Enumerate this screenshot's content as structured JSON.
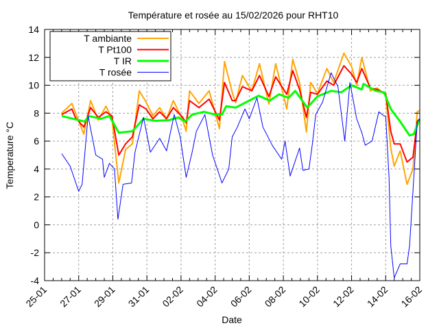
{
  "chart_data": {
    "type": "line",
    "title": "Température et rosée au 15/02/2026 pour RHT10",
    "xlabel": "Date",
    "ylabel": "Temperature °C",
    "x_unit": "days since 25-01 00:00",
    "xlim": [
      0,
      22
    ],
    "ylim": [
      -4,
      14
    ],
    "grid": true,
    "legend_placement": "top-left",
    "x_ticks": [
      {
        "value": 0,
        "label": "25-01"
      },
      {
        "value": 2,
        "label": "27-01"
      },
      {
        "value": 4,
        "label": "29-01"
      },
      {
        "value": 6,
        "label": "31-01"
      },
      {
        "value": 8,
        "label": "02-02"
      },
      {
        "value": 10,
        "label": "04-02"
      },
      {
        "value": 12,
        "label": "06-02"
      },
      {
        "value": 14,
        "label": "08-02"
      },
      {
        "value": 16,
        "label": "10-02"
      },
      {
        "value": 18,
        "label": "12-02"
      },
      {
        "value": 20,
        "label": "14-02"
      },
      {
        "value": 22,
        "label": "16-02"
      }
    ],
    "y_ticks": [
      {
        "value": -4,
        "label": "-4"
      },
      {
        "value": -2,
        "label": "-2"
      },
      {
        "value": 0,
        "label": "0"
      },
      {
        "value": 2,
        "label": "2"
      },
      {
        "value": 4,
        "label": "4"
      },
      {
        "value": 6,
        "label": "6"
      },
      {
        "value": 8,
        "label": "8"
      },
      {
        "value": 10,
        "label": "10"
      },
      {
        "value": 12,
        "label": "12"
      },
      {
        "value": 14,
        "label": "14"
      }
    ],
    "series": [
      {
        "name": "T ambiante",
        "color": "#ffa500",
        "width": 2,
        "x": [
          1,
          1.6,
          2.3,
          2.7,
          3.15,
          3.6,
          3.95,
          4.35,
          4.75,
          5.15,
          5.55,
          5.95,
          6.35,
          6.75,
          7.15,
          7.55,
          8.1,
          8.3,
          8.5,
          9.05,
          9.65,
          10.25,
          10.55,
          11,
          11.2,
          11.6,
          12.15,
          12.6,
          13.15,
          13.55,
          14.2,
          14.55,
          14.95,
          15.35,
          15.6,
          16,
          16.55,
          16.95,
          17.55,
          18,
          18.3,
          18.6,
          19.1,
          19.5,
          20,
          20.3,
          20.5,
          20.85,
          21.25,
          21.6,
          21.85,
          22
        ],
        "y": [
          8.0,
          8.7,
          6.5,
          8.9,
          7.5,
          8.5,
          7.6,
          3.0,
          5.4,
          5.8,
          9.6,
          8.8,
          7.8,
          8.4,
          7.6,
          8.9,
          7.5,
          6.7,
          9.6,
          8.7,
          9.6,
          6.9,
          11.7,
          9.5,
          8.75,
          10.7,
          9.6,
          11.55,
          8.65,
          11.55,
          8.3,
          11.85,
          10.2,
          6.65,
          10.2,
          9.4,
          11.2,
          10.2,
          12.3,
          11.35,
          10.0,
          12.0,
          9.6,
          9.8,
          9.3,
          5.5,
          4.2,
          5.3,
          2.9,
          4.0,
          8.1,
          8.2
        ]
      },
      {
        "name": "T Pt100",
        "color": "#ff0000",
        "width": 2,
        "x": [
          1,
          1.6,
          1.8,
          2.3,
          2.7,
          3.15,
          3.6,
          3.95,
          4.35,
          4.75,
          5.15,
          5.35,
          5.55,
          5.95,
          6.35,
          6.75,
          7.15,
          7.55,
          8.1,
          8.3,
          8.5,
          9.05,
          9.65,
          10.25,
          10.55,
          11,
          11.2,
          11.6,
          12.15,
          12.6,
          13.15,
          13.55,
          14.2,
          14.55,
          14.95,
          15.35,
          15.6,
          16,
          16.55,
          16.95,
          17.55,
          18,
          18.3,
          18.6,
          19.1,
          19.5,
          20,
          20.3,
          20.5,
          20.85,
          21.25,
          21.6,
          21.85,
          22
        ],
        "y": [
          7.9,
          8.3,
          7.7,
          7.0,
          8.4,
          7.7,
          8.1,
          7.8,
          5.0,
          5.8,
          6.3,
          7.45,
          8.6,
          8.3,
          7.6,
          8.1,
          7.6,
          8.4,
          7.7,
          7.3,
          8.9,
          8.4,
          9.0,
          7.5,
          10.2,
          8.9,
          8.9,
          9.9,
          9.6,
          10.7,
          9.2,
          10.6,
          9.35,
          11.05,
          9.7,
          7.7,
          9.5,
          9.35,
          10.3,
          10.0,
          11.4,
          10.8,
          10.2,
          11.2,
          9.8,
          9.7,
          9.4,
          6.7,
          5.8,
          5.8,
          4.5,
          4.85,
          7.4,
          7.6
        ]
      },
      {
        "name": "T IR",
        "color": "#00ff00",
        "width": 3,
        "x": [
          1,
          2.35,
          2.6,
          3.3,
          3.8,
          4.35,
          5.15,
          5.8,
          6.5,
          7.3,
          7.85,
          8.25,
          8.65,
          9.35,
          10,
          10.4,
          10.65,
          11.2,
          12,
          12.55,
          13.2,
          13.75,
          14.3,
          14.7,
          15.4,
          16,
          16.8,
          17.4,
          18,
          18.6,
          18.7,
          19.4,
          19.9,
          20.3,
          20.85,
          21.4,
          21.65,
          21.9,
          22
        ],
        "y": [
          7.8,
          7.4,
          7.8,
          7.6,
          7.8,
          6.6,
          6.7,
          7.6,
          7.45,
          7.5,
          7.7,
          7.4,
          7.9,
          8.1,
          7.9,
          7.9,
          8.5,
          8.4,
          8.9,
          9.25,
          8.9,
          9.35,
          9.1,
          9.6,
          8.4,
          9.2,
          9.6,
          9.5,
          10.0,
          9.7,
          10.1,
          9.6,
          9.5,
          8.3,
          7.4,
          6.4,
          6.5,
          7.3,
          7.5
        ]
      },
      {
        "name": "T rosée",
        "color": "#0000ff",
        "width": 1,
        "x": [
          1,
          1.5,
          2,
          2.2,
          2.55,
          3,
          3.4,
          3.5,
          3.8,
          4.1,
          4.3,
          4.6,
          5.1,
          5.3,
          5.8,
          6.2,
          6.75,
          7.15,
          7.6,
          7.95,
          8.3,
          8.65,
          8.9,
          9.4,
          9.85,
          10.4,
          10.8,
          11,
          11.3,
          11.75,
          12,
          12.45,
          12.8,
          13.35,
          13.9,
          14.1,
          14.4,
          14.95,
          15.15,
          15.5,
          15.7,
          15.9,
          16.3,
          16.8,
          17.2,
          17.6,
          17.9,
          18.3,
          18.6,
          18.8,
          19.2,
          19.6,
          19.9,
          20,
          20.2,
          20.3,
          20.5,
          20.85,
          21.25,
          21.4,
          21.65,
          21.85,
          22
        ],
        "y": [
          5.1,
          4.2,
          2.4,
          2.9,
          7.8,
          5.0,
          4.7,
          3.4,
          4.4,
          4.0,
          0.4,
          2.9,
          3.0,
          5.2,
          7.7,
          5.2,
          6.2,
          5.3,
          7.9,
          6.3,
          3.4,
          5.2,
          6.7,
          7.9,
          5.0,
          3.0,
          4.0,
          6.3,
          7.0,
          8.3,
          7.6,
          9.1,
          7.0,
          5.7,
          4.7,
          6.0,
          3.5,
          5.5,
          3.9,
          4.0,
          5.8,
          7.9,
          8.8,
          10.9,
          9.9,
          6.0,
          10.2,
          7.6,
          6.6,
          5.7,
          6.0,
          8.1,
          7.8,
          7.8,
          3.4,
          -1.5,
          -3.8,
          -2.8,
          -2.8,
          -1.5,
          3.4,
          7.4,
          7.6
        ]
      }
    ]
  }
}
